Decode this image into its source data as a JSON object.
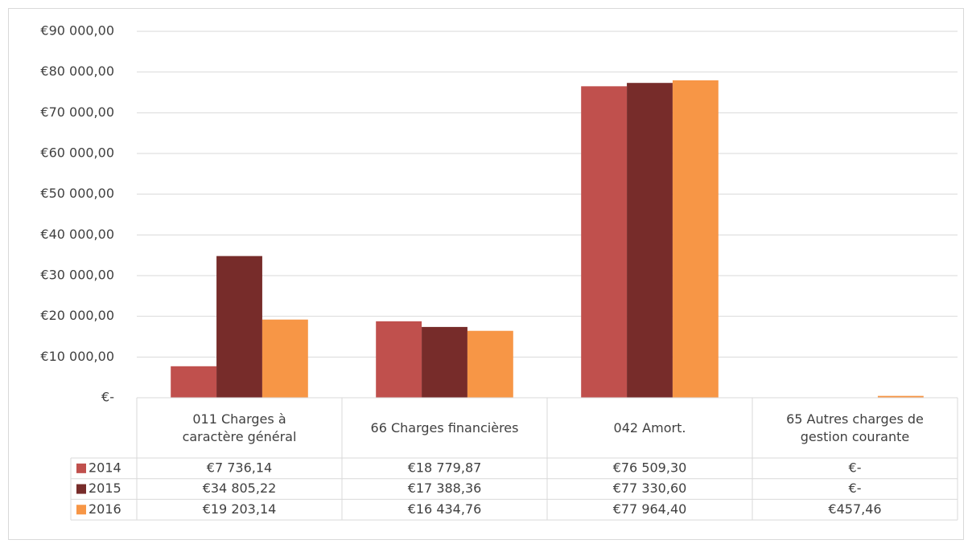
{
  "chart_data": {
    "type": "bar",
    "categories": [
      "011 Charges à\ncaractère général",
      "66 Charges financières",
      "042 Amort.",
      "65 Autres charges de\ngestion courante"
    ],
    "series": [
      {
        "name": "2014",
        "color": "#c0504d",
        "values": [
          7736.14,
          18779.87,
          76509.3,
          0
        ],
        "value_labels": [
          "€7 736,14",
          "€18 779,87",
          "€76 509,30",
          "€-"
        ]
      },
      {
        "name": "2015",
        "color": "#772c2a",
        "values": [
          34805.22,
          17388.36,
          77330.6,
          0
        ],
        "value_labels": [
          "€34 805,22",
          "€17 388,36",
          "€77 330,60",
          "€-"
        ]
      },
      {
        "name": "2016",
        "color": "#f79646",
        "values": [
          19203.14,
          16434.76,
          77964.4,
          457.46
        ],
        "value_labels": [
          "€19 203,14",
          "€16 434,76",
          "€77 964,40",
          "€457,46"
        ]
      }
    ],
    "ylim": [
      0,
      90000
    ],
    "yticks": [
      {
        "value": 0,
        "label": "€-"
      },
      {
        "value": 10000,
        "label": "€10 000,00"
      },
      {
        "value": 20000,
        "label": "€20 000,00"
      },
      {
        "value": 30000,
        "label": "€30 000,00"
      },
      {
        "value": 40000,
        "label": "€40 000,00"
      },
      {
        "value": 50000,
        "label": "€50 000,00"
      },
      {
        "value": 60000,
        "label": "€60 000,00"
      },
      {
        "value": 70000,
        "label": "€70 000,00"
      },
      {
        "value": 80000,
        "label": "€80 000,00"
      },
      {
        "value": 90000,
        "label": "€90 000,00"
      }
    ],
    "grid": true
  }
}
